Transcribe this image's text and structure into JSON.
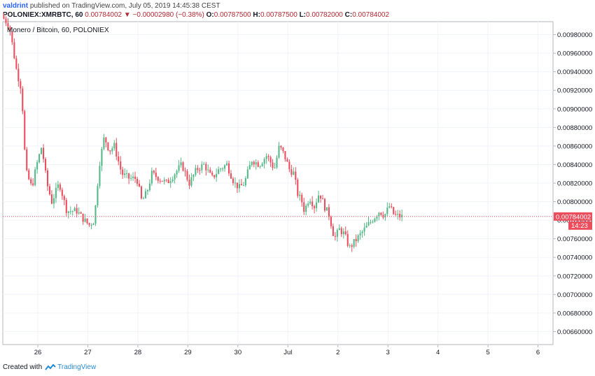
{
  "header": {
    "username": "valdrint",
    "published_text": "published on TradingView.com, July 05, 2019 14:45:38 CEST",
    "symbol": "POLONIEX:XMRBTC, 60",
    "last": "0.00784002",
    "change_arrow": "▼",
    "change": "−0.00002980 (−0.38%)",
    "o_label": "O:",
    "o_value": "0.00787500",
    "h_label": "H:",
    "h_value": "0.00787500",
    "l_label": "L:",
    "l_value": "0.00782000",
    "c_label": "C:",
    "c_value": "0.00784002"
  },
  "chart_data": {
    "type": "candlestick",
    "title": "Monero / Bitcoin, 60, POLONIEX",
    "ylim": [
      0.00646,
      0.00994
    ],
    "y_ticks": [
      "0.00980000",
      "0.00960000",
      "0.00940000",
      "0.00920000",
      "0.00900000",
      "0.00880000",
      "0.00860000",
      "0.00840000",
      "0.00820000",
      "0.00800000",
      "0.00780000",
      "0.00760000",
      "0.00740000",
      "0.00720000",
      "0.00700000",
      "0.00680000",
      "0.00660000"
    ],
    "x_ticks": [
      "26",
      "27",
      "28",
      "29",
      "30",
      "Jul",
      "2",
      "3",
      "4",
      "5",
      "6"
    ],
    "x_range_days": [
      25.3,
      32.3
    ],
    "last_price": "0.00784002",
    "countdown": "14:23",
    "up_color": "#53b987",
    "down_color": "#eb4d5c",
    "price_line_color": "#eb4d5c",
    "path_anchors": [
      [
        25.3,
        0.01
      ],
      [
        25.45,
        0.0099
      ],
      [
        25.6,
        0.0094
      ],
      [
        25.7,
        0.0092
      ],
      [
        25.75,
        0.0086
      ],
      [
        25.8,
        0.0083
      ],
      [
        25.9,
        0.00815
      ],
      [
        26.0,
        0.0084
      ],
      [
        26.1,
        0.0086
      ],
      [
        26.2,
        0.0082
      ],
      [
        26.3,
        0.008
      ],
      [
        26.45,
        0.0082
      ],
      [
        26.6,
        0.0079
      ],
      [
        26.8,
        0.0079
      ],
      [
        26.95,
        0.0078
      ],
      [
        27.05,
        0.00775
      ],
      [
        27.15,
        0.0078
      ],
      [
        27.25,
        0.0084
      ],
      [
        27.35,
        0.0087
      ],
      [
        27.45,
        0.00855
      ],
      [
        27.55,
        0.0086
      ],
      [
        27.7,
        0.0083
      ],
      [
        27.85,
        0.00825
      ],
      [
        28.0,
        0.00825
      ],
      [
        28.1,
        0.008
      ],
      [
        28.2,
        0.0081
      ],
      [
        28.3,
        0.0083
      ],
      [
        28.45,
        0.00825
      ],
      [
        28.6,
        0.0082
      ],
      [
        28.75,
        0.0083
      ],
      [
        28.9,
        0.0084
      ],
      [
        29.05,
        0.0082
      ],
      [
        29.2,
        0.00835
      ],
      [
        29.35,
        0.0084
      ],
      [
        29.5,
        0.00825
      ],
      [
        29.65,
        0.00835
      ],
      [
        29.8,
        0.0084
      ],
      [
        29.95,
        0.0082
      ],
      [
        30.05,
        0.00815
      ],
      [
        30.15,
        0.0082
      ],
      [
        30.3,
        0.00845
      ],
      [
        30.45,
        0.0084
      ],
      [
        30.6,
        0.0085
      ],
      [
        30.75,
        0.00835
      ],
      [
        30.85,
        0.0086
      ],
      [
        30.95,
        0.0085
      ],
      [
        31.05,
        0.00835
      ],
      [
        31.15,
        0.0083
      ],
      [
        31.2,
        0.0081
      ],
      [
        31.3,
        0.008
      ],
      [
        31.35,
        0.0079
      ],
      [
        31.45,
        0.00805
      ],
      [
        31.55,
        0.00795
      ],
      [
        31.65,
        0.0081
      ],
      [
        31.75,
        0.00795
      ],
      [
        31.85,
        0.00785
      ],
      [
        31.95,
        0.0076
      ],
      [
        32.05,
        0.0077
      ],
      [
        32.15,
        0.00765
      ],
      [
        32.25,
        0.0075
      ],
      [
        32.4,
        0.0076
      ],
      [
        32.55,
        0.0077
      ],
      [
        32.7,
        0.0078
      ],
      [
        32.85,
        0.0079
      ],
      [
        32.95,
        0.00785
      ],
      [
        33.05,
        0.00795
      ],
      [
        33.15,
        0.00785
      ],
      [
        33.3,
        0.00784
      ]
    ]
  },
  "footer": {
    "created_with": "Created with",
    "brand": "TradingView"
  }
}
